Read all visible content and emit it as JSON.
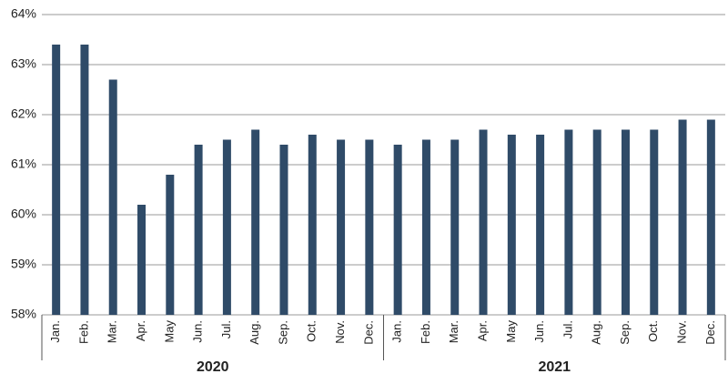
{
  "chart_data": {
    "type": "bar",
    "categories": [
      "Jan.",
      "Feb.",
      "Mar.",
      "Apr.",
      "May",
      "Jun.",
      "Jul.",
      "Aug.",
      "Sep.",
      "Oct.",
      "Nov.",
      "Dec.",
      "Jan.",
      "Feb.",
      "Mar.",
      "Apr.",
      "May",
      "Jun.",
      "Jul.",
      "Aug.",
      "Sep.",
      "Oct.",
      "Nov.",
      "Dec."
    ],
    "group_labels": [
      "2020",
      "2021"
    ],
    "values": [
      63.4,
      63.4,
      62.7,
      60.2,
      60.8,
      61.4,
      61.5,
      61.7,
      61.4,
      61.6,
      61.5,
      61.5,
      61.4,
      61.5,
      61.5,
      61.7,
      61.6,
      61.6,
      61.7,
      61.7,
      61.7,
      61.7,
      61.9,
      61.9
    ],
    "color": "#2f4b68",
    "ylim": [
      58,
      64
    ],
    "yticks": [
      {
        "value": 58,
        "label": "58%"
      },
      {
        "value": 59,
        "label": "59%"
      },
      {
        "value": 60,
        "label": "60%"
      },
      {
        "value": 61,
        "label": "61%"
      },
      {
        "value": 62,
        "label": "62%"
      },
      {
        "value": 63,
        "label": "63%"
      },
      {
        "value": 64,
        "label": "64%"
      }
    ],
    "grid": true
  }
}
